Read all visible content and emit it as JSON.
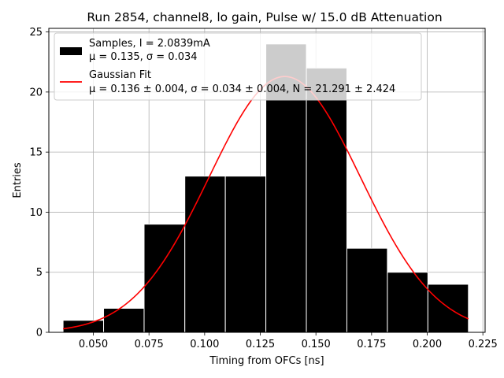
{
  "chart_data": {
    "type": "bar",
    "title": "Run 2854, channel8, lo gain, Pulse w/ 15.0 dB Attenuation",
    "xlabel": "Timing from OFCs [ns]",
    "ylabel": "Entries",
    "xlim": [
      0.03,
      0.226
    ],
    "ylim": [
      0,
      25.3
    ],
    "x_ticks": [
      0.05,
      0.075,
      0.1,
      0.125,
      0.15,
      0.175,
      0.2,
      0.225
    ],
    "x_tick_labels": [
      "0.050",
      "0.075",
      "0.100",
      "0.125",
      "0.150",
      "0.175",
      "0.200",
      "0.225"
    ],
    "y_ticks": [
      0,
      5,
      10,
      15,
      20,
      25
    ],
    "y_tick_labels": [
      "0",
      "5",
      "10",
      "15",
      "20",
      "25"
    ],
    "grid": true,
    "legend_position": "top-left",
    "bin_edges": [
      0.0364,
      0.0546,
      0.0728,
      0.0911,
      0.1093,
      0.1275,
      0.1457,
      0.1639,
      0.1821,
      0.2003,
      0.2185
    ],
    "series": [
      {
        "kind": "histogram",
        "values": [
          1,
          2,
          9,
          13,
          13,
          24,
          22,
          7,
          5,
          4
        ],
        "color": "#000000",
        "overflow_color": "#c8c8c8",
        "edge_color": "#ffffff"
      },
      {
        "kind": "gaussian_fit",
        "mu": 0.136,
        "sigma": 0.034,
        "N": 21.291,
        "x_range": [
          0.0364,
          0.2185
        ],
        "color": "#ff0000"
      }
    ],
    "legend": [
      {
        "symbol": "box",
        "color": "#000000",
        "line1": "Samples, I = 2.0839mA",
        "line2": "μ = 0.135, σ = 0.034"
      },
      {
        "symbol": "line",
        "color": "#ff0000",
        "line1": "Gaussian Fit",
        "line2": "μ = 0.136 ± 0.004, σ = 0.034 ± 0.004, N = 21.291 ± 2.424"
      }
    ]
  }
}
